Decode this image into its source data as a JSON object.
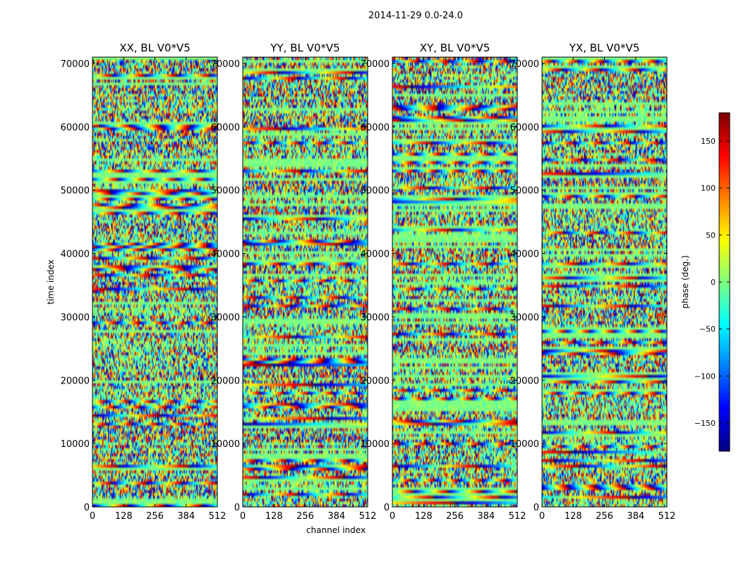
{
  "chart_data": {
    "type": "heatmap",
    "suptitle": "2014-11-29 0.0-24.0",
    "xlabel": "channel index",
    "ylabel": "time index",
    "xlim": [
      0,
      512
    ],
    "ylim": [
      0,
      71000
    ],
    "x_ticks": [
      0,
      128,
      256,
      384,
      512
    ],
    "y_ticks": [
      0,
      10000,
      20000,
      30000,
      40000,
      50000,
      60000,
      70000
    ],
    "panels": [
      {
        "title": "XX, BL V0*V5"
      },
      {
        "title": "YY, BL V0*V5"
      },
      {
        "title": "XY, BL V0*V5"
      },
      {
        "title": "YX, BL V0*V5"
      }
    ],
    "colorbar": {
      "label": "phase (deg.)",
      "range": [
        -180,
        180
      ],
      "ticks": [
        -150,
        -100,
        -50,
        0,
        50,
        100,
        150
      ],
      "tick_labels": [
        "−150",
        "−100",
        "−50",
        "0",
        "50",
        "100",
        "150"
      ],
      "colormap": "jet"
    }
  }
}
